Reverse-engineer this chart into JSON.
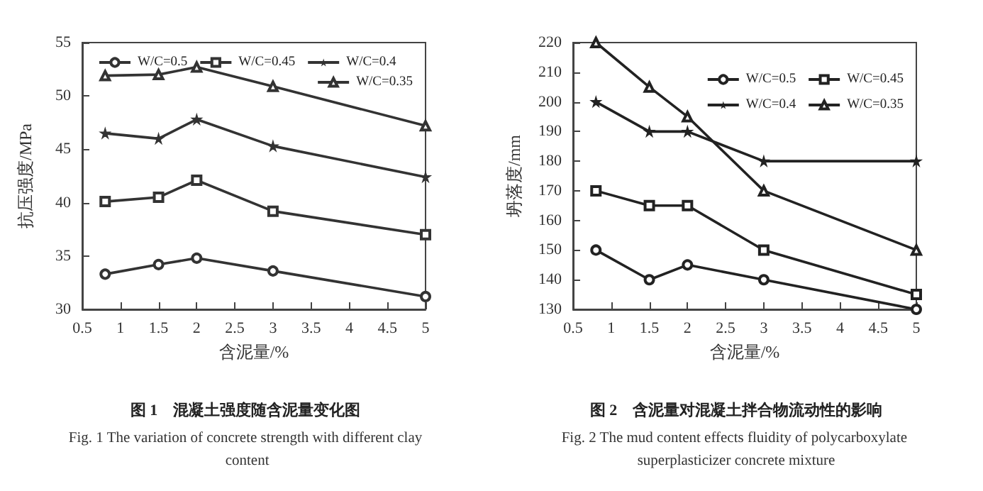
{
  "chart_data": [
    {
      "type": "line",
      "title": "图 1　混凝土强度随含泥量变化图",
      "subtitle": "Fig. 1 The variation of concrete strength with different clay content",
      "xlabel": "含泥量/%",
      "ylabel": "抗压强度/MPa",
      "x": [
        0.8,
        1.5,
        2,
        3,
        5
      ],
      "series": [
        {
          "name": "W/C=0.5",
          "color": "#333333",
          "marker": "circle",
          "values": [
            33.3,
            34.2,
            34.8,
            33.6,
            31.2
          ]
        },
        {
          "name": "W/C=0.45",
          "color": "#333333",
          "marker": "square",
          "values": [
            40.1,
            40.5,
            42.1,
            39.2,
            37.0
          ]
        },
        {
          "name": "W/C=0.4",
          "color": "#333333",
          "marker": "star",
          "values": [
            46.5,
            46.0,
            47.8,
            45.3,
            42.4
          ]
        },
        {
          "name": "W/C=0.35",
          "color": "#333333",
          "marker": "triangle",
          "values": [
            51.9,
            52.0,
            52.7,
            50.9,
            47.2
          ]
        }
      ],
      "xlim": [
        0.5,
        5
      ],
      "xticks": [
        0.5,
        1,
        1.5,
        2,
        2.5,
        3,
        3.5,
        4,
        4.5,
        5
      ],
      "ylim": [
        30,
        55
      ],
      "yticks": [
        30,
        35,
        40,
        45,
        50,
        55
      ],
      "grid": false,
      "legend": "top",
      "line_style": "solid"
    },
    {
      "type": "line",
      "title": "图 2　含泥量对混凝土拌合物流动性的影响",
      "subtitle": "Fig. 2 The mud content effects fluidity of polycarboxylate superplasticizer concrete mixture",
      "xlabel": "含泥量/%",
      "ylabel": "坍落度/mm",
      "x": [
        0.8,
        1.5,
        2,
        3,
        5
      ],
      "series": [
        {
          "name": "W/C=0.5",
          "color": "#222222",
          "marker": "circle",
          "values": [
            150,
            140,
            145,
            140,
            130
          ]
        },
        {
          "name": "W/C=0.45",
          "color": "#222222",
          "marker": "square",
          "values": [
            170,
            165,
            165,
            150,
            135
          ]
        },
        {
          "name": "W/C=0.4",
          "color": "#222222",
          "marker": "star",
          "values": [
            200,
            190,
            190,
            180,
            180
          ]
        },
        {
          "name": "W/C=0.35",
          "color": "#222222",
          "marker": "triangle",
          "values": [
            220,
            205,
            195,
            170,
            150
          ]
        }
      ],
      "xlim": [
        0.5,
        5
      ],
      "xticks": [
        0.5,
        1,
        1.5,
        2,
        2.5,
        3,
        3.5,
        4,
        4.5,
        5
      ],
      "ylim": [
        130,
        220
      ],
      "yticks": [
        130,
        140,
        150,
        160,
        170,
        180,
        190,
        200,
        210,
        220
      ],
      "grid": false,
      "legend": "top right",
      "line_style": "solid"
    }
  ]
}
